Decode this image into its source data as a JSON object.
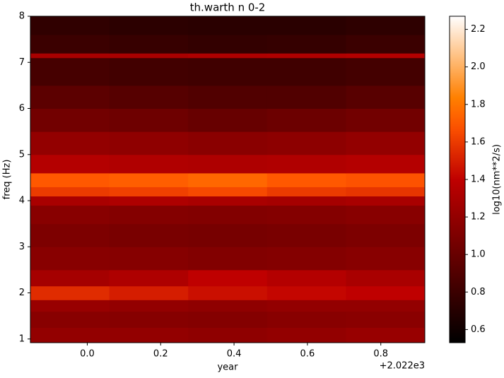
{
  "chart_data": {
    "type": "heatmap",
    "title": "th.warth n 0-2",
    "x_label": "year",
    "y_label": "freq (Hz)",
    "x_offset_label": "+2.022e3",
    "colorbar_label": "log10(nm**2/s)",
    "colormap": "gist_heat",
    "x": [
      -0.155,
      0.06,
      0.275,
      0.49,
      0.705,
      0.92
    ],
    "y": [
      0.92,
      1.25,
      1.6,
      1.85,
      2.15,
      2.5,
      3.0,
      3.5,
      3.9,
      4.1,
      4.3,
      4.6,
      5.0,
      5.5,
      6.0,
      6.5,
      7.1,
      7.2,
      7.6,
      8.0
    ],
    "z": [
      [
        1.2,
        1.2,
        1.18,
        1.2,
        1.22
      ],
      [
        1.15,
        1.14,
        1.13,
        1.15,
        1.16
      ],
      [
        1.22,
        1.2,
        1.18,
        1.2,
        1.2
      ],
      [
        1.55,
        1.5,
        1.45,
        1.42,
        1.4
      ],
      [
        1.28,
        1.32,
        1.4,
        1.35,
        1.3
      ],
      [
        1.15,
        1.14,
        1.12,
        1.13,
        1.15
      ],
      [
        1.1,
        1.08,
        1.07,
        1.08,
        1.1
      ],
      [
        1.15,
        1.13,
        1.12,
        1.13,
        1.15
      ],
      [
        1.3,
        1.32,
        1.3,
        1.28,
        1.3
      ],
      [
        1.6,
        1.62,
        1.65,
        1.6,
        1.58
      ],
      [
        1.7,
        1.72,
        1.75,
        1.7,
        1.68
      ],
      [
        1.35,
        1.33,
        1.32,
        1.33,
        1.35
      ],
      [
        1.2,
        1.18,
        1.16,
        1.17,
        1.2
      ],
      [
        1.05,
        1.03,
        1.0,
        1.02,
        1.05
      ],
      [
        0.95,
        0.92,
        0.9,
        0.9,
        0.93
      ],
      [
        0.85,
        0.83,
        0.82,
        0.82,
        0.84
      ],
      [
        1.3,
        1.3,
        1.32,
        1.33,
        1.35
      ],
      [
        0.8,
        0.78,
        0.76,
        0.77,
        0.8
      ],
      [
        0.75,
        0.73,
        0.72,
        0.72,
        0.74
      ]
    ],
    "xlim": [
      -0.155,
      0.92
    ],
    "xticks": [
      {
        "value": 0,
        "label": "0.0"
      },
      0.2,
      0.4,
      0.6,
      0.8
    ],
    "ylim": [
      0.92,
      8
    ],
    "yticks": [
      1,
      2,
      3,
      4,
      5,
      6,
      7,
      8
    ],
    "clim": [
      0.53,
      2.27
    ],
    "cticks": [
      0.6,
      0.8,
      {
        "value": 1,
        "label": "1.0"
      },
      1.2,
      1.4,
      1.6,
      1.8,
      {
        "value": 2,
        "label": "2.0"
      },
      2.2
    ]
  }
}
